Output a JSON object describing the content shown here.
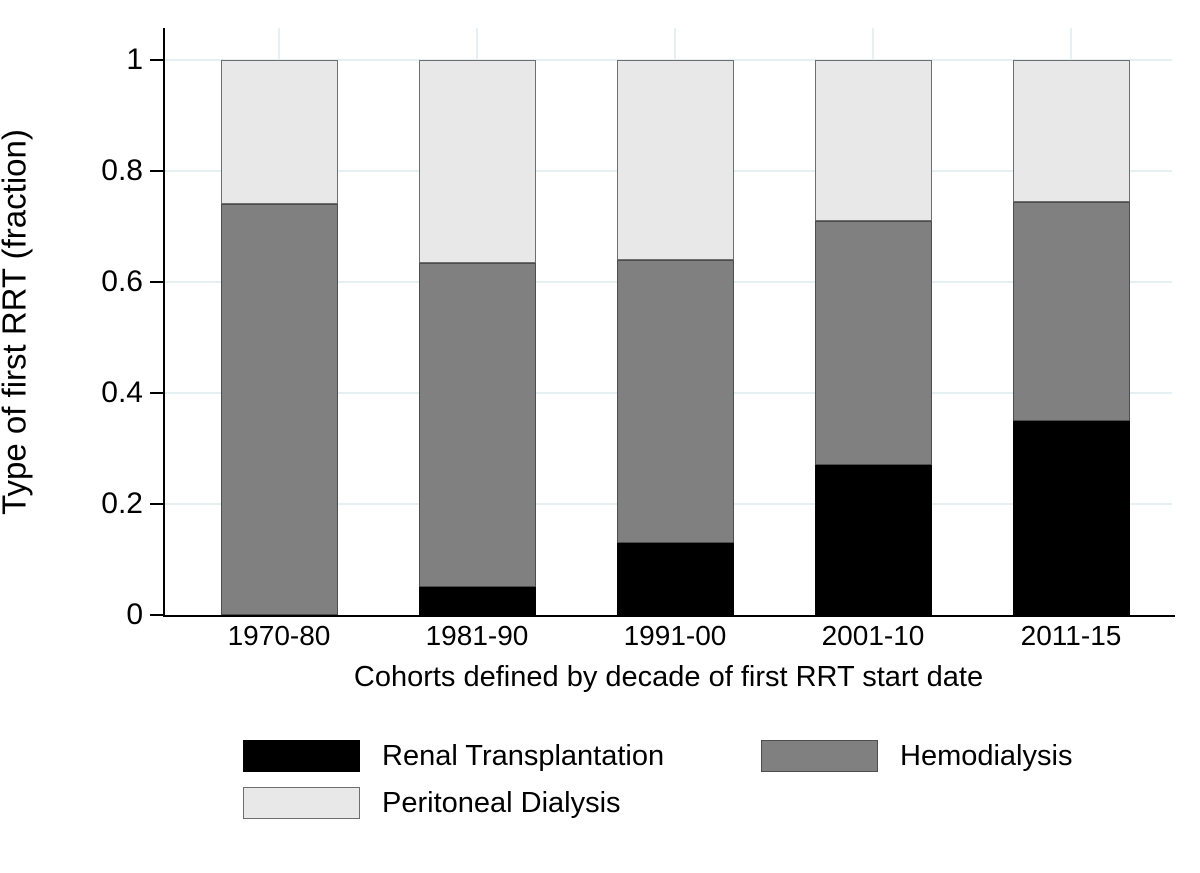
{
  "chart_data": {
    "type": "bar",
    "stacked": true,
    "orientation": "vertical",
    "title": "",
    "xlabel": "Cohorts defined by decade of first RRT start date",
    "ylabel": "Type of first RRT (fraction)",
    "categories": [
      "1970-80",
      "1981-90",
      "1991-00",
      "2001-10",
      "2011-15"
    ],
    "series": [
      {
        "name": "Renal Transplantation",
        "color": "#000000",
        "border_color": "#000000",
        "values": [
          0,
          0.05,
          0.13,
          0.27,
          0.35
        ]
      },
      {
        "name": "Hemodialysis",
        "color": "#808080",
        "border_color": "#4d4d4d",
        "values": [
          0.74,
          0.585,
          0.51,
          0.44,
          0.395
        ]
      },
      {
        "name": "Peritoneal Dialysis",
        "color": "#e8e8e8",
        "border_color": "#6e6e6e",
        "values": [
          0.26,
          0.365,
          0.36,
          0.29,
          0.255
        ]
      }
    ],
    "stack_tops": {
      "renal_transplantation": [
        0,
        0.05,
        0.13,
        0.27,
        0.35
      ],
      "hemodialysis": [
        0.74,
        0.635,
        0.64,
        0.71,
        0.745
      ],
      "peritoneal_dialysis": [
        1,
        1,
        1,
        1,
        1
      ]
    },
    "ylim": [
      0,
      1
    ],
    "yticks": [
      0,
      0.2,
      0.4,
      0.6,
      0.8,
      1
    ],
    "ytick_labels": [
      "0",
      "0.2",
      "0.4",
      "0.6",
      "0.8",
      "1"
    ],
    "grid": true,
    "gridline_color": "#e4f0f1",
    "axis_color": "#000000",
    "plot_background": "#ffffff",
    "legend_position": "bottom",
    "legend_rows": [
      [
        "Renal Transplantation",
        "Hemodialysis"
      ],
      [
        "Peritoneal Dialysis"
      ]
    ]
  }
}
